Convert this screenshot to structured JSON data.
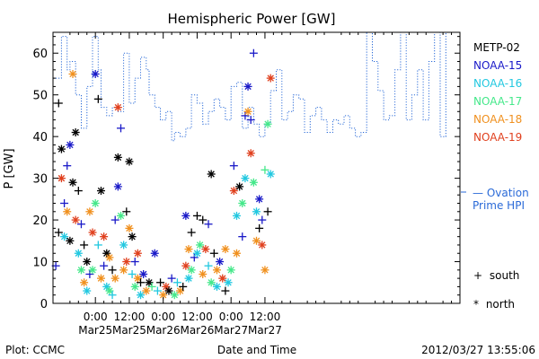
{
  "chart_data": {
    "type": "scatter",
    "title": "Hemispheric Power [GW]",
    "ylabel": "P [GW]",
    "xlabel": "Date and Time",
    "ylim": [
      0,
      65
    ],
    "xlim_hours": [
      -15,
      129
    ],
    "yticks": [
      0,
      10,
      20,
      30,
      40,
      50,
      60
    ],
    "xticks": [
      {
        "line1": "0:00",
        "line2": "Mar25",
        "hours": 0
      },
      {
        "line1": "12:00",
        "line2": "Mar25",
        "hours": 12
      },
      {
        "line1": "0:00",
        "line2": "Mar26",
        "hours": 24
      },
      {
        "line1": "12:00",
        "line2": "Mar26",
        "hours": 36
      },
      {
        "line1": "0:00",
        "line2": "Mar27",
        "hours": 48
      },
      {
        "line1": "12:00",
        "line2": "Mar27",
        "hours": 60
      }
    ],
    "legend": [
      {
        "name": "METP-02",
        "color": "#000000"
      },
      {
        "name": "NOAA-15",
        "color": "#1a1ac8"
      },
      {
        "name": "NOAA-16",
        "color": "#22c8e0"
      },
      {
        "name": "NOAA-17",
        "color": "#44e88a"
      },
      {
        "name": "NOAA-18",
        "color": "#f0901e"
      },
      {
        "name": "NOAA-19",
        "color": "#e0401e"
      }
    ],
    "ovation_label": [
      "— Ovation",
      "Prime HPI"
    ],
    "ovation_level": 27,
    "ovation_color": "#2a6ad8",
    "symbol_key": [
      {
        "symbol": "+",
        "label": "south"
      },
      {
        "symbol": "*",
        "label": "north"
      }
    ],
    "ovation_series": [
      [
        -15,
        54
      ],
      [
        -12,
        54
      ],
      [
        -12,
        64
      ],
      [
        -10,
        64
      ],
      [
        -10,
        56
      ],
      [
        -9,
        56
      ],
      [
        -9,
        58
      ],
      [
        -7,
        58
      ],
      [
        -7,
        50
      ],
      [
        -5,
        50
      ],
      [
        -5,
        42
      ],
      [
        -3,
        42
      ],
      [
        -3,
        52
      ],
      [
        -1,
        52
      ],
      [
        -1,
        64
      ],
      [
        1,
        64
      ],
      [
        1,
        56
      ],
      [
        2,
        56
      ],
      [
        2,
        47
      ],
      [
        4,
        47
      ],
      [
        4,
        45
      ],
      [
        6,
        45
      ],
      [
        6,
        47
      ],
      [
        8,
        47
      ],
      [
        8,
        46
      ],
      [
        10,
        46
      ],
      [
        10,
        60
      ],
      [
        12,
        60
      ],
      [
        12,
        48
      ],
      [
        14,
        48
      ],
      [
        14,
        54
      ],
      [
        16,
        54
      ],
      [
        16,
        59
      ],
      [
        18,
        59
      ],
      [
        18,
        56
      ],
      [
        19,
        56
      ],
      [
        19,
        50
      ],
      [
        21,
        50
      ],
      [
        21,
        47
      ],
      [
        23,
        47
      ],
      [
        23,
        44
      ],
      [
        25,
        44
      ],
      [
        25,
        46
      ],
      [
        27,
        46
      ],
      [
        27,
        39
      ],
      [
        28,
        39
      ],
      [
        28,
        41
      ],
      [
        30,
        41
      ],
      [
        30,
        40
      ],
      [
        32,
        40
      ],
      [
        32,
        42
      ],
      [
        34,
        42
      ],
      [
        34,
        50
      ],
      [
        36,
        50
      ],
      [
        36,
        48
      ],
      [
        38,
        48
      ],
      [
        38,
        43
      ],
      [
        40,
        43
      ],
      [
        40,
        46
      ],
      [
        42,
        46
      ],
      [
        42,
        49
      ],
      [
        44,
        49
      ],
      [
        44,
        47
      ],
      [
        46,
        47
      ],
      [
        46,
        44
      ],
      [
        48,
        44
      ],
      [
        48,
        52
      ],
      [
        50,
        52
      ],
      [
        50,
        53
      ],
      [
        52,
        53
      ],
      [
        52,
        42
      ],
      [
        54,
        42
      ],
      [
        54,
        47
      ],
      [
        56,
        47
      ],
      [
        56,
        43
      ],
      [
        58,
        43
      ],
      [
        58,
        40
      ],
      [
        60,
        40
      ],
      [
        60,
        43
      ],
      [
        62,
        43
      ],
      [
        62,
        51
      ],
      [
        64,
        51
      ],
      [
        64,
        56
      ],
      [
        66,
        56
      ],
      [
        66,
        44
      ],
      [
        68,
        44
      ],
      [
        68,
        46
      ],
      [
        70,
        46
      ],
      [
        70,
        50
      ],
      [
        72,
        50
      ],
      [
        72,
        49
      ],
      [
        74,
        49
      ],
      [
        74,
        41
      ],
      [
        76,
        41
      ],
      [
        76,
        45
      ],
      [
        78,
        45
      ],
      [
        78,
        47
      ],
      [
        80,
        47
      ],
      [
        80,
        44
      ],
      [
        82,
        44
      ],
      [
        82,
        41
      ],
      [
        84,
        41
      ],
      [
        84,
        44
      ],
      [
        86,
        44
      ],
      [
        86,
        43
      ],
      [
        88,
        43
      ],
      [
        88,
        45
      ],
      [
        90,
        45
      ],
      [
        90,
        42
      ],
      [
        92,
        42
      ],
      [
        92,
        40
      ],
      [
        94,
        40
      ],
      [
        94,
        41
      ],
      [
        96,
        41
      ],
      [
        96,
        65
      ],
      [
        98,
        65
      ],
      [
        98,
        58
      ],
      [
        100,
        58
      ],
      [
        100,
        51
      ],
      [
        102,
        51
      ],
      [
        102,
        44
      ],
      [
        104,
        44
      ],
      [
        104,
        45
      ],
      [
        106,
        45
      ],
      [
        106,
        56
      ],
      [
        108,
        56
      ],
      [
        108,
        65
      ],
      [
        110,
        65
      ],
      [
        110,
        44
      ],
      [
        112,
        44
      ],
      [
        112,
        50
      ],
      [
        114,
        50
      ],
      [
        114,
        56
      ],
      [
        116,
        56
      ],
      [
        116,
        44
      ],
      [
        118,
        44
      ],
      [
        118,
        58
      ],
      [
        120,
        58
      ],
      [
        120,
        65
      ],
      [
        122,
        65
      ],
      [
        122,
        40
      ],
      [
        124,
        40
      ],
      [
        124,
        65
      ],
      [
        125,
        65
      ]
    ],
    "points": [
      {
        "x": -14,
        "y": 9,
        "c": 1,
        "m": "+"
      },
      {
        "x": -13,
        "y": 17,
        "c": 0,
        "m": "+"
      },
      {
        "x": -13,
        "y": 48,
        "c": 0,
        "m": "+"
      },
      {
        "x": -12,
        "y": 30,
        "c": 5,
        "m": "*"
      },
      {
        "x": -12,
        "y": 37,
        "c": 0,
        "m": "*"
      },
      {
        "x": -11,
        "y": 24,
        "c": 1,
        "m": "+"
      },
      {
        "x": -11,
        "y": 16,
        "c": 2,
        "m": "*"
      },
      {
        "x": -10,
        "y": 33,
        "c": 1,
        "m": "+"
      },
      {
        "x": -10,
        "y": 22,
        "c": 4,
        "m": "*"
      },
      {
        "x": -9,
        "y": 38,
        "c": 1,
        "m": "*"
      },
      {
        "x": -9,
        "y": 15,
        "c": 0,
        "m": "*"
      },
      {
        "x": -8,
        "y": 29,
        "c": 0,
        "m": "*"
      },
      {
        "x": -8,
        "y": 55,
        "c": 4,
        "m": "*"
      },
      {
        "x": -7,
        "y": 20,
        "c": 5,
        "m": "*"
      },
      {
        "x": -7,
        "y": 41,
        "c": 0,
        "m": "*"
      },
      {
        "x": -6,
        "y": 27,
        "c": 0,
        "m": "+"
      },
      {
        "x": -6,
        "y": 12,
        "c": 2,
        "m": "*"
      },
      {
        "x": -5,
        "y": 19,
        "c": 1,
        "m": "+"
      },
      {
        "x": -5,
        "y": 8,
        "c": 3,
        "m": "*"
      },
      {
        "x": -4,
        "y": 14,
        "c": 0,
        "m": "+"
      },
      {
        "x": -4,
        "y": 5,
        "c": 4,
        "m": "*"
      },
      {
        "x": -3,
        "y": 10,
        "c": 0,
        "m": "*"
      },
      {
        "x": -3,
        "y": 3,
        "c": 2,
        "m": "*"
      },
      {
        "x": -2,
        "y": 22,
        "c": 4,
        "m": "*"
      },
      {
        "x": -2,
        "y": 7,
        "c": 1,
        "m": "+"
      },
      {
        "x": -1,
        "y": 8,
        "c": 3,
        "m": "*"
      },
      {
        "x": -1,
        "y": 17,
        "c": 5,
        "m": "*"
      },
      {
        "x": 0,
        "y": 55,
        "c": 1,
        "m": "*"
      },
      {
        "x": 0,
        "y": 24,
        "c": 3,
        "m": "*"
      },
      {
        "x": 1,
        "y": 49,
        "c": 0,
        "m": "+"
      },
      {
        "x": 1,
        "y": 14,
        "c": 2,
        "m": "+"
      },
      {
        "x": 2,
        "y": 27,
        "c": 0,
        "m": "*"
      },
      {
        "x": 2,
        "y": 6,
        "c": 4,
        "m": "*"
      },
      {
        "x": 3,
        "y": 16,
        "c": 5,
        "m": "*"
      },
      {
        "x": 3,
        "y": 9,
        "c": 1,
        "m": "+"
      },
      {
        "x": 4,
        "y": 12,
        "c": 0,
        "m": "*"
      },
      {
        "x": 4,
        "y": 4,
        "c": 2,
        "m": "*"
      },
      {
        "x": 5,
        "y": 11,
        "c": 4,
        "m": "*"
      },
      {
        "x": 5,
        "y": 3,
        "c": 3,
        "m": "*"
      },
      {
        "x": 6,
        "y": 8,
        "c": 0,
        "m": "+"
      },
      {
        "x": 6,
        "y": 2,
        "c": 2,
        "m": "+"
      },
      {
        "x": 7,
        "y": 20,
        "c": 1,
        "m": "+"
      },
      {
        "x": 7,
        "y": 6,
        "c": 4,
        "m": "*"
      },
      {
        "x": 8,
        "y": 35,
        "c": 0,
        "m": "*"
      },
      {
        "x": 8,
        "y": 47,
        "c": 5,
        "m": "*"
      },
      {
        "x": 8,
        "y": 28,
        "c": 1,
        "m": "*"
      },
      {
        "x": 9,
        "y": 42,
        "c": 1,
        "m": "+"
      },
      {
        "x": 9,
        "y": 21,
        "c": 3,
        "m": "*"
      },
      {
        "x": 10,
        "y": 14,
        "c": 2,
        "m": "*"
      },
      {
        "x": 10,
        "y": 8,
        "c": 4,
        "m": "*"
      },
      {
        "x": 11,
        "y": 22,
        "c": 0,
        "m": "+"
      },
      {
        "x": 11,
        "y": 10,
        "c": 5,
        "m": "*"
      },
      {
        "x": 12,
        "y": 18,
        "c": 4,
        "m": "*"
      },
      {
        "x": 12,
        "y": 34,
        "c": 0,
        "m": "*"
      },
      {
        "x": 13,
        "y": 16,
        "c": 0,
        "m": "*"
      },
      {
        "x": 13,
        "y": 7,
        "c": 2,
        "m": "+"
      },
      {
        "x": 14,
        "y": 10,
        "c": 1,
        "m": "+"
      },
      {
        "x": 14,
        "y": 4,
        "c": 3,
        "m": "*"
      },
      {
        "x": 15,
        "y": 6,
        "c": 4,
        "m": "*"
      },
      {
        "x": 15,
        "y": 12,
        "c": 5,
        "m": "*"
      },
      {
        "x": 16,
        "y": 5,
        "c": 0,
        "m": "+"
      },
      {
        "x": 16,
        "y": 2,
        "c": 2,
        "m": "*"
      },
      {
        "x": 17,
        "y": 7,
        "c": 1,
        "m": "*"
      },
      {
        "x": 18,
        "y": 3,
        "c": 4,
        "m": "*"
      },
      {
        "x": 19,
        "y": 5,
        "c": 0,
        "m": "*"
      },
      {
        "x": 20,
        "y": 4,
        "c": 3,
        "m": "+"
      },
      {
        "x": 21,
        "y": 12,
        "c": 1,
        "m": "*"
      },
      {
        "x": 22,
        "y": 3,
        "c": 2,
        "m": "+"
      },
      {
        "x": 23,
        "y": 5,
        "c": 0,
        "m": "+"
      },
      {
        "x": 24,
        "y": 2,
        "c": 4,
        "m": "*"
      },
      {
        "x": 25,
        "y": 4,
        "c": 5,
        "m": "*"
      },
      {
        "x": 26,
        "y": 3,
        "c": 0,
        "m": "*"
      },
      {
        "x": 27,
        "y": 6,
        "c": 1,
        "m": "+"
      },
      {
        "x": 28,
        "y": 2,
        "c": 3,
        "m": "*"
      },
      {
        "x": 29,
        "y": 5,
        "c": 2,
        "m": "+"
      },
      {
        "x": 30,
        "y": 3,
        "c": 4,
        "m": "*"
      },
      {
        "x": 31,
        "y": 4,
        "c": 0,
        "m": "+"
      },
      {
        "x": 32,
        "y": 21,
        "c": 1,
        "m": "*"
      },
      {
        "x": 32,
        "y": 9,
        "c": 5,
        "m": "*"
      },
      {
        "x": 33,
        "y": 13,
        "c": 4,
        "m": "*"
      },
      {
        "x": 33,
        "y": 6,
        "c": 2,
        "m": "*"
      },
      {
        "x": 34,
        "y": 17,
        "c": 0,
        "m": "+"
      },
      {
        "x": 34,
        "y": 8,
        "c": 3,
        "m": "*"
      },
      {
        "x": 35,
        "y": 11,
        "c": 1,
        "m": "+"
      },
      {
        "x": 36,
        "y": 21,
        "c": 0,
        "m": "+"
      },
      {
        "x": 36,
        "y": 12,
        "c": 2,
        "m": "*"
      },
      {
        "x": 37,
        "y": 14,
        "c": 3,
        "m": "*"
      },
      {
        "x": 38,
        "y": 20,
        "c": 0,
        "m": "+"
      },
      {
        "x": 38,
        "y": 7,
        "c": 4,
        "m": "*"
      },
      {
        "x": 39,
        "y": 13,
        "c": 5,
        "m": "*"
      },
      {
        "x": 40,
        "y": 19,
        "c": 1,
        "m": "+"
      },
      {
        "x": 40,
        "y": 9,
        "c": 2,
        "m": "+"
      },
      {
        "x": 41,
        "y": 31,
        "c": 0,
        "m": "*"
      },
      {
        "x": 41,
        "y": 5,
        "c": 3,
        "m": "*"
      },
      {
        "x": 42,
        "y": 12,
        "c": 0,
        "m": "+"
      },
      {
        "x": 43,
        "y": 8,
        "c": 4,
        "m": "*"
      },
      {
        "x": 43,
        "y": 4,
        "c": 2,
        "m": "*"
      },
      {
        "x": 44,
        "y": 10,
        "c": 1,
        "m": "*"
      },
      {
        "x": 45,
        "y": 6,
        "c": 5,
        "m": "*"
      },
      {
        "x": 46,
        "y": 13,
        "c": 4,
        "m": "*"
      },
      {
        "x": 46,
        "y": 3,
        "c": 0,
        "m": "+"
      },
      {
        "x": 47,
        "y": 5,
        "c": 2,
        "m": "*"
      },
      {
        "x": 48,
        "y": 8,
        "c": 3,
        "m": "*"
      },
      {
        "x": 49,
        "y": 33,
        "c": 1,
        "m": "+"
      },
      {
        "x": 49,
        "y": 27,
        "c": 5,
        "m": "*"
      },
      {
        "x": 50,
        "y": 12,
        "c": 4,
        "m": "*"
      },
      {
        "x": 50,
        "y": 21,
        "c": 2,
        "m": "*"
      },
      {
        "x": 51,
        "y": 28,
        "c": 0,
        "m": "*"
      },
      {
        "x": 52,
        "y": 24,
        "c": 3,
        "m": "*"
      },
      {
        "x": 52,
        "y": 16,
        "c": 1,
        "m": "+"
      },
      {
        "x": 53,
        "y": 45,
        "c": 1,
        "m": "+"
      },
      {
        "x": 53,
        "y": 30,
        "c": 2,
        "m": "*"
      },
      {
        "x": 54,
        "y": 52,
        "c": 1,
        "m": "*"
      },
      {
        "x": 54,
        "y": 46,
        "c": 4,
        "m": "*"
      },
      {
        "x": 55,
        "y": 36,
        "c": 5,
        "m": "*"
      },
      {
        "x": 55,
        "y": 44,
        "c": 1,
        "m": "+"
      },
      {
        "x": 56,
        "y": 60,
        "c": 1,
        "m": "+"
      },
      {
        "x": 56,
        "y": 29,
        "c": 3,
        "m": "*"
      },
      {
        "x": 57,
        "y": 22,
        "c": 2,
        "m": "*"
      },
      {
        "x": 57,
        "y": 15,
        "c": 4,
        "m": "*"
      },
      {
        "x": 58,
        "y": 18,
        "c": 0,
        "m": "+"
      },
      {
        "x": 58,
        "y": 25,
        "c": 1,
        "m": "*"
      },
      {
        "x": 59,
        "y": 20,
        "c": 1,
        "m": "+"
      },
      {
        "x": 59,
        "y": 14,
        "c": 5,
        "m": "*"
      },
      {
        "x": 60,
        "y": 8,
        "c": 4,
        "m": "*"
      },
      {
        "x": 60,
        "y": 32,
        "c": 3,
        "m": "+"
      },
      {
        "x": 61,
        "y": 43,
        "c": 3,
        "m": "*"
      },
      {
        "x": 61,
        "y": 22,
        "c": 0,
        "m": "+"
      },
      {
        "x": 62,
        "y": 54,
        "c": 5,
        "m": "*"
      },
      {
        "x": 62,
        "y": 31,
        "c": 2,
        "m": "*"
      }
    ]
  },
  "footer": {
    "left": "Plot: CCMC",
    "center": "Date and Time",
    "right": "2012/03/27 13:55:06"
  }
}
